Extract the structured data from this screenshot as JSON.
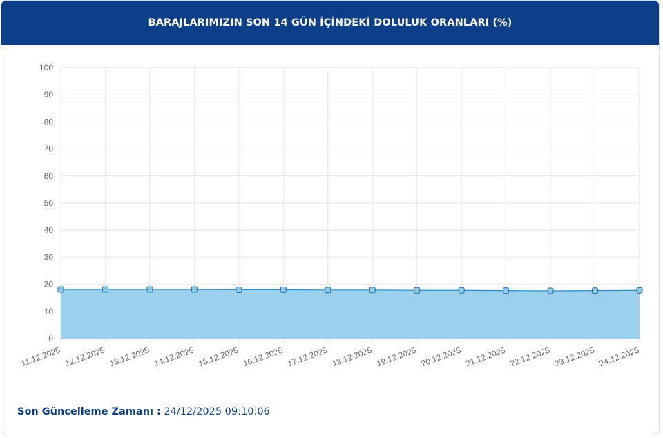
{
  "chart_data": {
    "type": "line",
    "title": "BARAJLARIMIZIN SON 14 GÜN İÇİNDEKİ DOLULUK ORANLARI (%)",
    "categories": [
      "11.12.2025",
      "12.12.2025",
      "13.12.2025",
      "14.12.2025",
      "15.12.2025",
      "16.12.2025",
      "17.12.2025",
      "18.12.2025",
      "19.12.2025",
      "20.12.2025",
      "21.12.2025",
      "22.12.2025",
      "23.12.2025",
      "24.12.2025"
    ],
    "series": [
      {
        "color": "#2a8ac8",
        "values": [
          18.1,
          18.1,
          18.1,
          18.1,
          18.0,
          18.0,
          17.9,
          17.9,
          17.8,
          17.8,
          17.7,
          17.6,
          17.7,
          17.8
        ]
      }
    ],
    "ylim": [
      0,
      100
    ],
    "yticks": [
      0,
      10,
      20,
      30,
      40,
      50,
      60,
      70,
      80,
      90,
      100
    ],
    "grid": true,
    "area": true
  },
  "footer": {
    "label": "Son Güncelleme Zamanı :",
    "value": "24/12/2025 09:10:06"
  }
}
